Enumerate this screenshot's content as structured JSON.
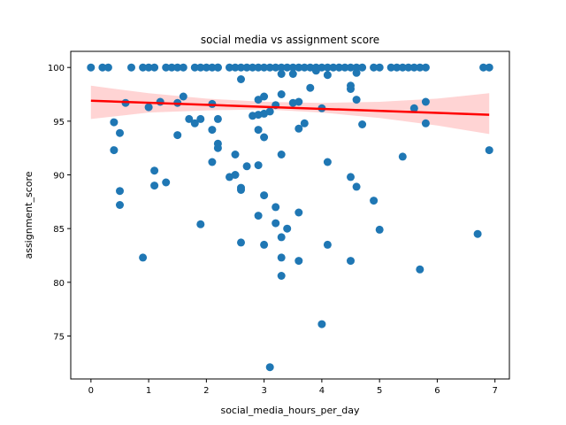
{
  "chart_data": {
    "type": "scatter",
    "title": "social media vs assignment score",
    "xlabel": "social_media_hours_per_day",
    "ylabel": "assignment_score",
    "xlim": [
      -0.35,
      7.25
    ],
    "ylim": [
      71.0,
      101.5
    ],
    "xticks": [
      0,
      1,
      2,
      3,
      4,
      5,
      6,
      7
    ],
    "yticks": [
      75,
      80,
      85,
      90,
      95,
      100
    ],
    "grid": false,
    "colors": {
      "points": "#1f77b4",
      "regression": "#ff0000",
      "confidence_band": "#ffcccc"
    },
    "regression": {
      "x": [
        0,
        6.9
      ],
      "y": [
        96.9,
        95.6
      ]
    },
    "confidence_band": {
      "x": [
        0,
        1,
        2,
        3,
        4,
        5,
        6,
        6.9
      ],
      "lower": [
        95.2,
        95.8,
        96.0,
        96.1,
        95.8,
        95.3,
        94.6,
        93.8
      ],
      "upper": [
        98.3,
        97.6,
        97.1,
        96.8,
        96.7,
        96.8,
        97.1,
        97.6
      ]
    },
    "points": [
      [
        0,
        100
      ],
      [
        0.2,
        100
      ],
      [
        0.3,
        100
      ],
      [
        0.4,
        94.9
      ],
      [
        0.4,
        92.3
      ],
      [
        0.5,
        93.9
      ],
      [
        0.5,
        88.5
      ],
      [
        0.5,
        87.2
      ],
      [
        0.6,
        96.7
      ],
      [
        0.7,
        100
      ],
      [
        0.9,
        100
      ],
      [
        0.9,
        82.3
      ],
      [
        1.0,
        100
      ],
      [
        1.0,
        96.3
      ],
      [
        1.1,
        100
      ],
      [
        1.1,
        90.4
      ],
      [
        1.1,
        89.0
      ],
      [
        1.2,
        96.8
      ],
      [
        1.3,
        100
      ],
      [
        1.3,
        89.3
      ],
      [
        1.4,
        100
      ],
      [
        1.5,
        100
      ],
      [
        1.5,
        96.7
      ],
      [
        1.5,
        93.7
      ],
      [
        1.6,
        100
      ],
      [
        1.6,
        97.3
      ],
      [
        1.7,
        95.2
      ],
      [
        1.8,
        100
      ],
      [
        1.8,
        94.8
      ],
      [
        1.9,
        100
      ],
      [
        1.9,
        95.2
      ],
      [
        1.9,
        85.4
      ],
      [
        2.0,
        100
      ],
      [
        2.1,
        100
      ],
      [
        2.1,
        96.6
      ],
      [
        2.1,
        94.2
      ],
      [
        2.1,
        91.2
      ],
      [
        2.2,
        100
      ],
      [
        2.2,
        100
      ],
      [
        2.2,
        95.2
      ],
      [
        2.2,
        92.9
      ],
      [
        2.2,
        92.5
      ],
      [
        2.4,
        100
      ],
      [
        2.4,
        89.8
      ],
      [
        2.5,
        100
      ],
      [
        2.5,
        91.9
      ],
      [
        2.5,
        90.0
      ],
      [
        2.6,
        100
      ],
      [
        2.6,
        98.9
      ],
      [
        2.6,
        88.8
      ],
      [
        2.6,
        88.6
      ],
      [
        2.6,
        83.7
      ],
      [
        2.7,
        100
      ],
      [
        2.7,
        90.8
      ],
      [
        2.8,
        100
      ],
      [
        2.8,
        95.5
      ],
      [
        2.9,
        100
      ],
      [
        2.9,
        97.0
      ],
      [
        2.9,
        95.6
      ],
      [
        2.9,
        94.2
      ],
      [
        2.9,
        90.9
      ],
      [
        2.9,
        86.2
      ],
      [
        3.0,
        100
      ],
      [
        3.0,
        97.3
      ],
      [
        3.0,
        95.7
      ],
      [
        3.0,
        93.5
      ],
      [
        3.0,
        88.1
      ],
      [
        3.0,
        83.5
      ],
      [
        3.1,
        100
      ],
      [
        3.1,
        95.9
      ],
      [
        3.2,
        100
      ],
      [
        3.2,
        96.5
      ],
      [
        3.2,
        87.0
      ],
      [
        3.2,
        85.5
      ],
      [
        3.3,
        100
      ],
      [
        3.3,
        99.4
      ],
      [
        3.3,
        97.5
      ],
      [
        3.3,
        91.9
      ],
      [
        3.3,
        84.2
      ],
      [
        3.3,
        82.3
      ],
      [
        3.3,
        80.6
      ],
      [
        3.1,
        72.1
      ],
      [
        3.4,
        100
      ],
      [
        3.4,
        85.0
      ],
      [
        3.5,
        100
      ],
      [
        3.5,
        99.4
      ],
      [
        3.5,
        96.7
      ],
      [
        3.6,
        100
      ],
      [
        3.6,
        96.8
      ],
      [
        3.6,
        94.3
      ],
      [
        3.6,
        86.5
      ],
      [
        3.6,
        82.0
      ],
      [
        3.7,
        100
      ],
      [
        3.7,
        94.8
      ],
      [
        3.8,
        100
      ],
      [
        3.8,
        98.1
      ],
      [
        3.9,
        100
      ],
      [
        3.9,
        99.7
      ],
      [
        4.0,
        100
      ],
      [
        4.0,
        96.2
      ],
      [
        4.0,
        76.1
      ],
      [
        4.1,
        100
      ],
      [
        4.1,
        99.3
      ],
      [
        4.1,
        91.2
      ],
      [
        4.1,
        83.5
      ],
      [
        4.2,
        100
      ],
      [
        4.3,
        100
      ],
      [
        4.4,
        100
      ],
      [
        4.5,
        100
      ],
      [
        4.5,
        98.3
      ],
      [
        4.5,
        98.0
      ],
      [
        4.5,
        89.8
      ],
      [
        4.5,
        82.0
      ],
      [
        4.6,
        100
      ],
      [
        4.6,
        99.5
      ],
      [
        4.6,
        97.0
      ],
      [
        4.6,
        88.9
      ],
      [
        4.7,
        100
      ],
      [
        4.7,
        94.7
      ],
      [
        4.9,
        100
      ],
      [
        4.9,
        87.6
      ],
      [
        5.0,
        100
      ],
      [
        5.0,
        84.9
      ],
      [
        5.2,
        100
      ],
      [
        5.3,
        100
      ],
      [
        5.4,
        100
      ],
      [
        5.4,
        91.7
      ],
      [
        5.5,
        100
      ],
      [
        5.6,
        100
      ],
      [
        5.6,
        96.2
      ],
      [
        5.7,
        100
      ],
      [
        5.7,
        81.2
      ],
      [
        5.8,
        100
      ],
      [
        5.8,
        96.8
      ],
      [
        5.8,
        94.8
      ],
      [
        6.7,
        84.5
      ],
      [
        6.8,
        100
      ],
      [
        6.9,
        100
      ],
      [
        6.9,
        92.3
      ]
    ]
  }
}
